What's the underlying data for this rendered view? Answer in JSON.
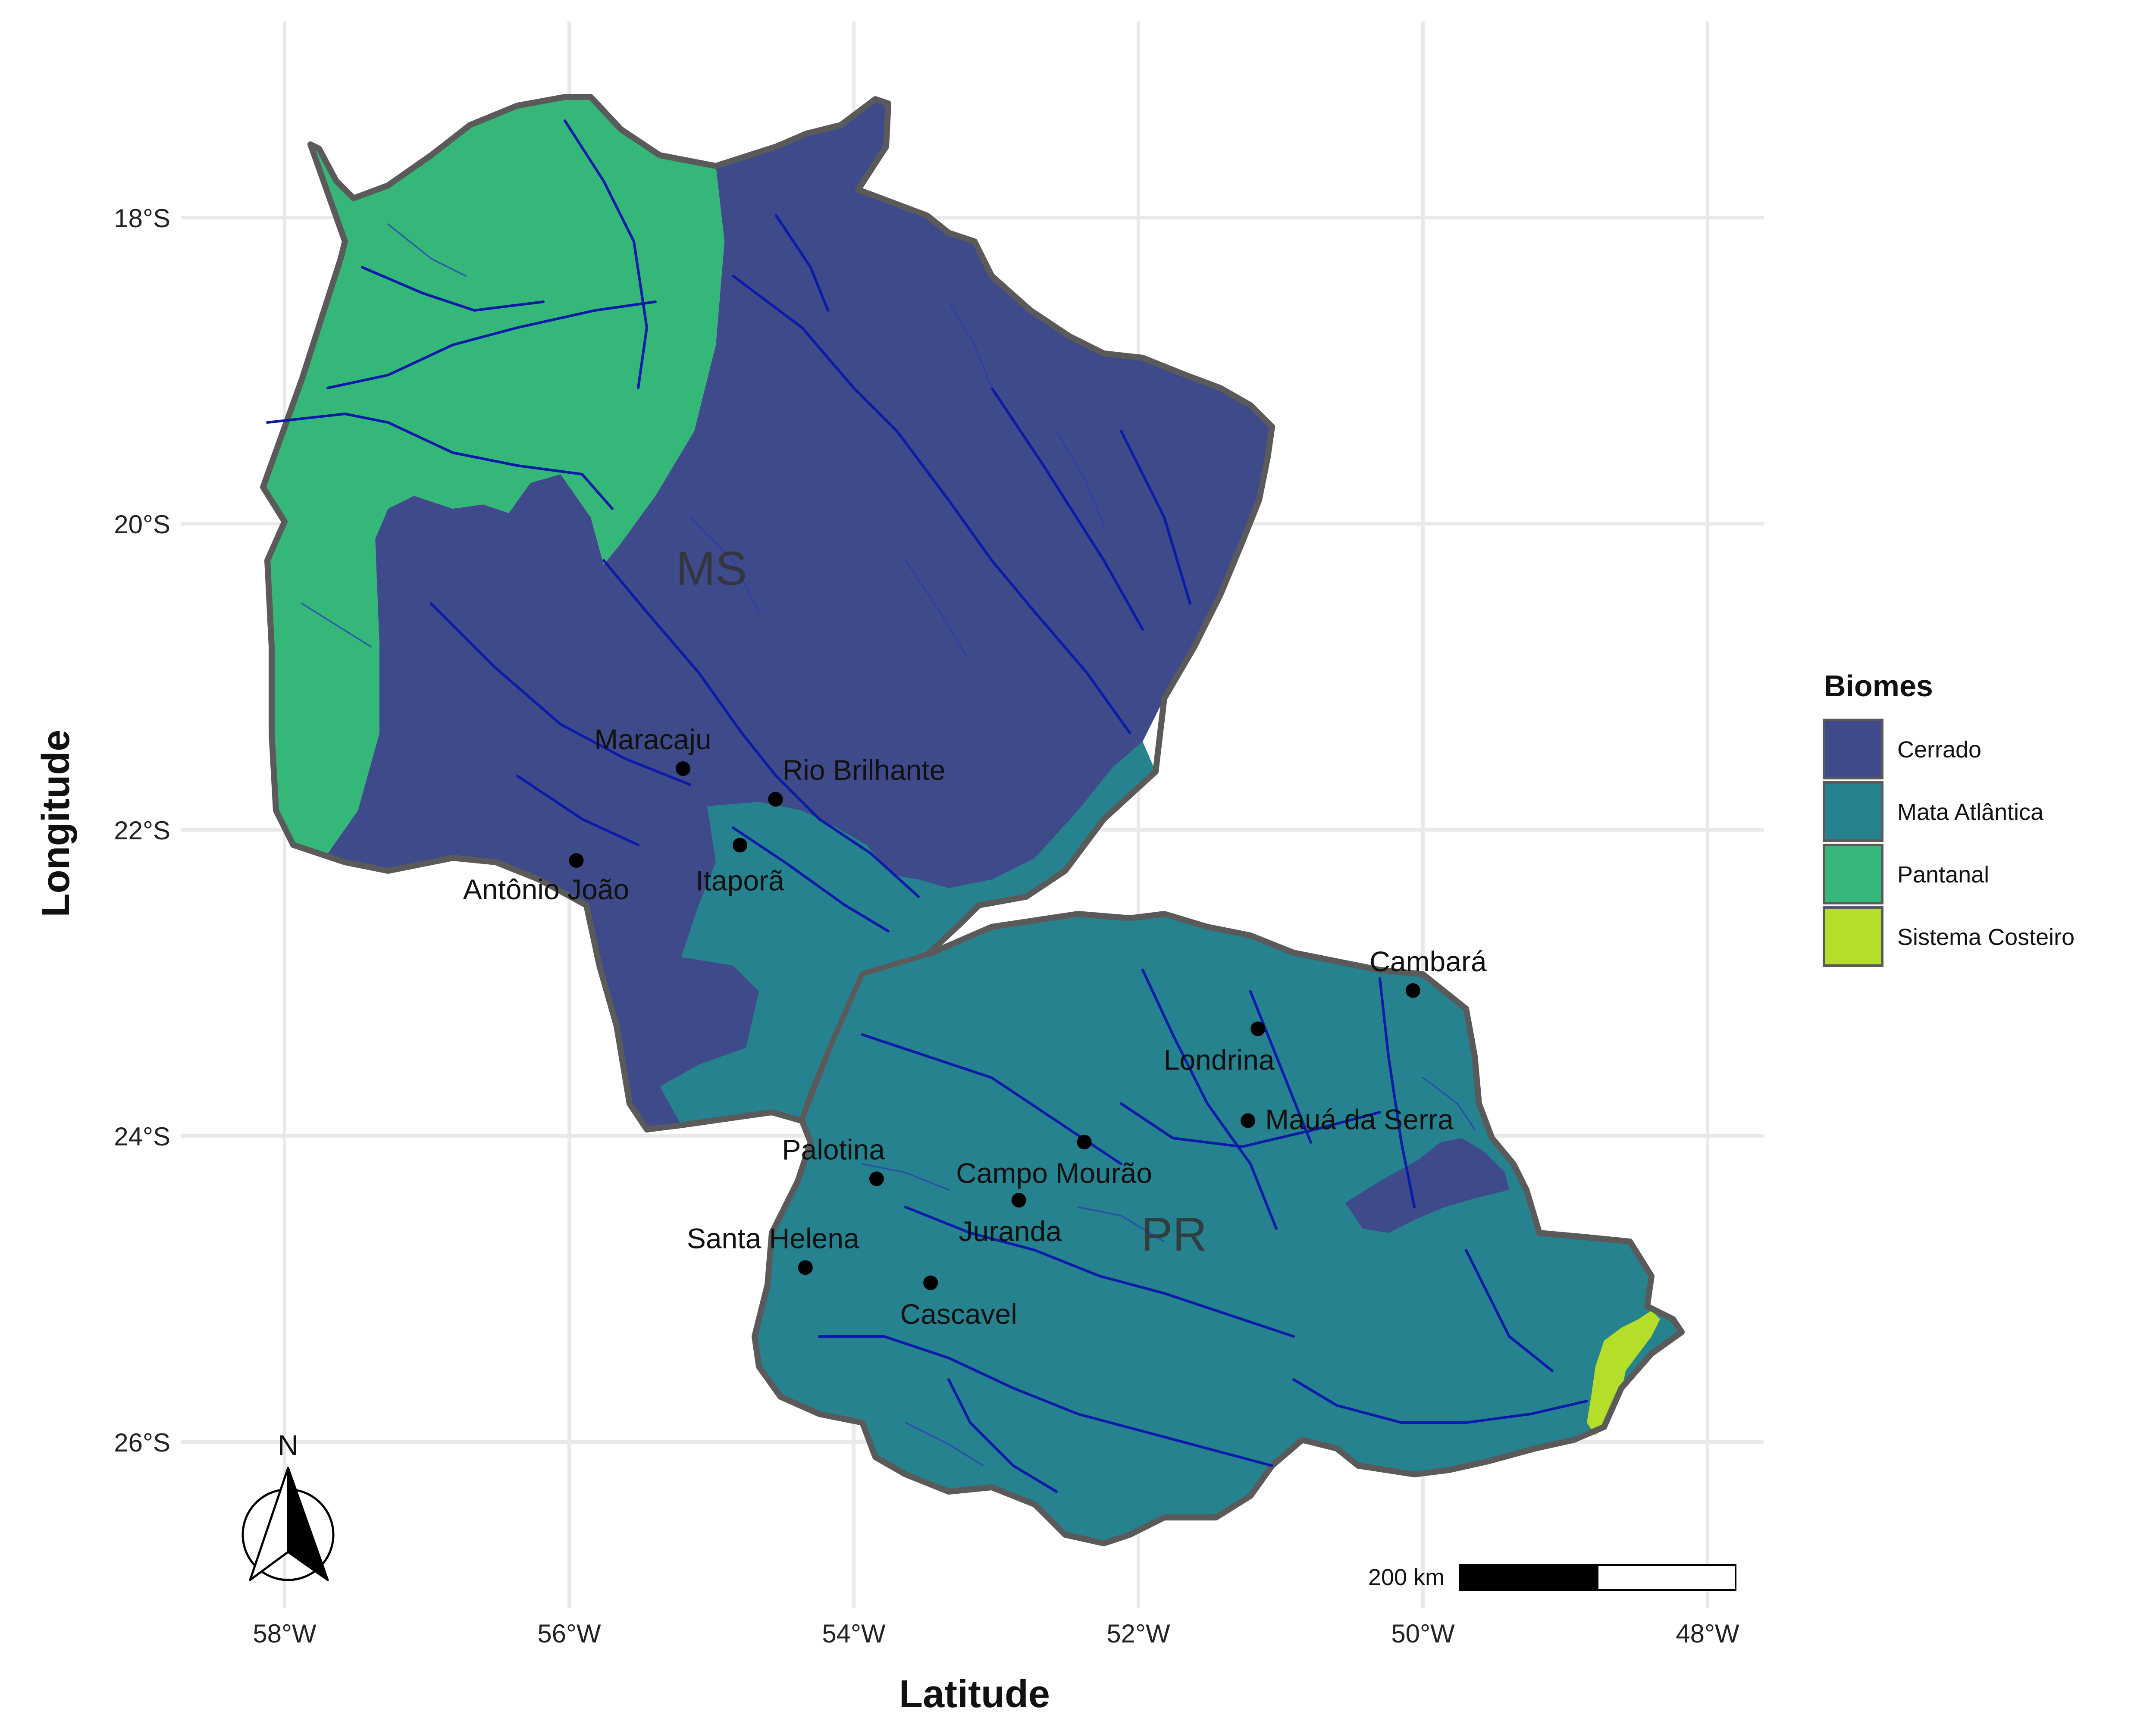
{
  "axes": {
    "xlabel": "Latitude",
    "ylabel": "Longitude",
    "x_ticks": [
      "58°W",
      "56°W",
      "54°W",
      "52°W",
      "50°W",
      "48°W"
    ],
    "y_ticks": [
      "18°S",
      "20°S",
      "22°S",
      "24°S",
      "26°S"
    ]
  },
  "legend": {
    "title": "Biomes",
    "items": [
      {
        "label": "Cerrado",
        "color": "#3e4a89"
      },
      {
        "label": "Mata Atlântica",
        "color": "#26828e"
      },
      {
        "label": "Pantanal",
        "color": "#35b779"
      },
      {
        "label": "Sistema Costeiro",
        "color": "#b5de2b"
      }
    ]
  },
  "states": [
    {
      "label": "MS",
      "lon": -55.0,
      "lat": -20.3
    },
    {
      "label": "PR",
      "lon": -51.75,
      "lat": -24.65
    }
  ],
  "cities": [
    {
      "name": "Maracaju",
      "lon": -55.2,
      "lat": -21.6
    },
    {
      "name": "Rio Brilhante",
      "lon": -54.55,
      "lat": -21.8
    },
    {
      "name": "Itaporã",
      "lon": -54.8,
      "lat": -22.1
    },
    {
      "name": "Antônio João",
      "lon": -55.95,
      "lat": -22.2
    },
    {
      "name": "Cambará",
      "lon": -50.07,
      "lat": -23.05
    },
    {
      "name": "Londrina",
      "lon": -51.16,
      "lat": -23.3
    },
    {
      "name": "Mauá da Serra",
      "lon": -51.23,
      "lat": -23.9
    },
    {
      "name": "Palotina",
      "lon": -53.84,
      "lat": -24.28
    },
    {
      "name": "Campo Mourão",
      "lon": -52.38,
      "lat": -24.04
    },
    {
      "name": "Juranda",
      "lon": -52.84,
      "lat": -24.42
    },
    {
      "name": "Santa Helena",
      "lon": -54.34,
      "lat": -24.86
    },
    {
      "name": "Cascavel",
      "lon": -53.46,
      "lat": -24.96
    }
  ],
  "scalebar": {
    "label": "200 km"
  },
  "north_arrow": {
    "label": "N"
  }
}
